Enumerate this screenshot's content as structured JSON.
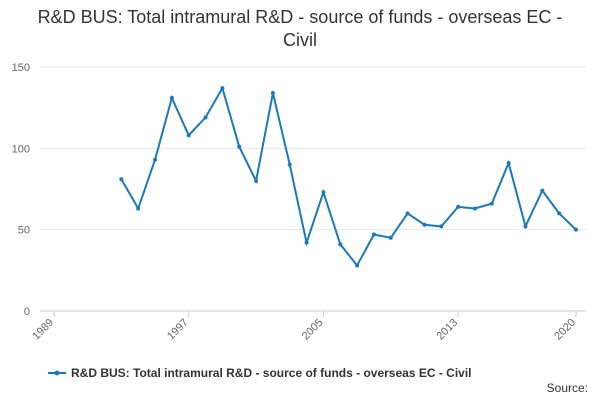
{
  "chart_data": {
    "type": "line",
    "title": "R&D BUS: Total intramural R&D - source of funds - overseas EC - Civil",
    "x": [
      1993,
      1994,
      1995,
      1996,
      1997,
      1998,
      1999,
      2000,
      2001,
      2002,
      2003,
      2004,
      2005,
      2006,
      2007,
      2008,
      2009,
      2010,
      2011,
      2012,
      2013,
      2014,
      2015,
      2016,
      2017,
      2018,
      2019,
      2020
    ],
    "series": [
      {
        "name": "R&D BUS: Total intramural R&D - source of funds - overseas EC - Civil",
        "color": "#1a7ab9",
        "values": [
          81,
          63,
          93,
          131,
          108,
          119,
          137,
          101,
          80,
          134,
          90,
          42,
          73,
          41,
          28,
          47,
          45,
          60,
          53,
          52,
          64,
          63,
          66,
          91,
          52,
          74,
          60,
          50
        ]
      }
    ],
    "xlim": [
      1989,
      2020
    ],
    "xticks": [
      1989,
      1997,
      2005,
      2013,
      2020
    ],
    "ylim": [
      0,
      150
    ],
    "yticks": [
      0,
      50,
      100,
      150
    ],
    "grid": true,
    "source_label": "Source:"
  }
}
